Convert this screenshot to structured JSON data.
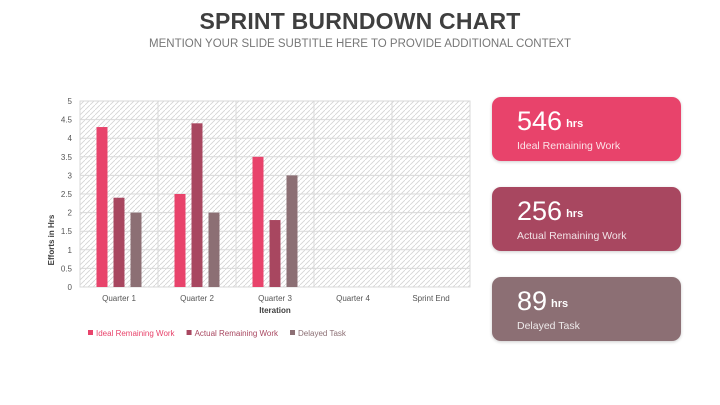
{
  "page": {
    "title": "SPRINT BURNDOWN CHART",
    "subtitle": "MENTION YOUR SLIDE SUBTITLE HERE TO PROVIDE ADDITIONAL CONTEXT"
  },
  "chart_data": {
    "type": "bar",
    "categories": [
      "Quarter 1",
      "Quarter 2",
      "Quarter 3",
      "Quarter 4",
      "Sprint End"
    ],
    "series": [
      {
        "name": "Ideal Remaining Work",
        "values": [
          4.3,
          2.5,
          3.5,
          null,
          null
        ],
        "color": "#e8436b"
      },
      {
        "name": "Actual Remaining Work",
        "values": [
          2.4,
          4.4,
          1.8,
          null,
          null
        ],
        "color": "#a84760"
      },
      {
        "name": "Delayed Task",
        "values": [
          2.0,
          2.0,
          3.0,
          null,
          null
        ],
        "color": "#8c6f74"
      }
    ],
    "xlabel": "Iteration",
    "ylabel": "Efforts in Hrs",
    "ylim": [
      0,
      5
    ],
    "yticks": [
      "0",
      "0.5",
      "1",
      "1.5",
      "2",
      "2.5",
      "3",
      "3.5",
      "4",
      "4.5",
      "5"
    ],
    "grid": true,
    "legend_position": "bottom-left"
  },
  "cards": [
    {
      "value": "546",
      "unit": "hrs",
      "label": "Ideal Remaining Work",
      "color": "#e8436b"
    },
    {
      "value": "256",
      "unit": "hrs",
      "label": "Actual Remaining Work",
      "color": "#a84760"
    },
    {
      "value": "89",
      "unit": "hrs",
      "label": "Delayed Task",
      "color": "#8c6f74"
    }
  ]
}
